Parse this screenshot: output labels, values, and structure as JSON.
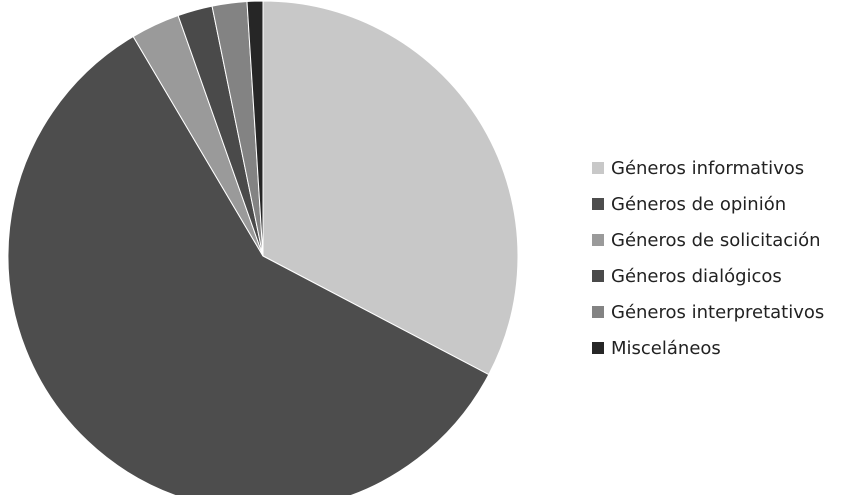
{
  "chart_data": {
    "type": "pie",
    "categories": [
      "Géneros informativos",
      "Géneros de opinión",
      "Géneros de solicitación",
      "Géneros dialógicos",
      "Géneros interpretativos",
      "Misceláneos"
    ],
    "values": [
      32.7,
      58.8,
      3.1,
      2.2,
      2.2,
      1.0
    ],
    "unit": "%",
    "colors": [
      "#c8c8c8",
      "#4d4d4d",
      "#9a9a9a",
      "#4a4a4a",
      "#838383",
      "#262626"
    ],
    "legend_position": "right",
    "start_angle_deg": 0,
    "direction": "clockwise"
  }
}
